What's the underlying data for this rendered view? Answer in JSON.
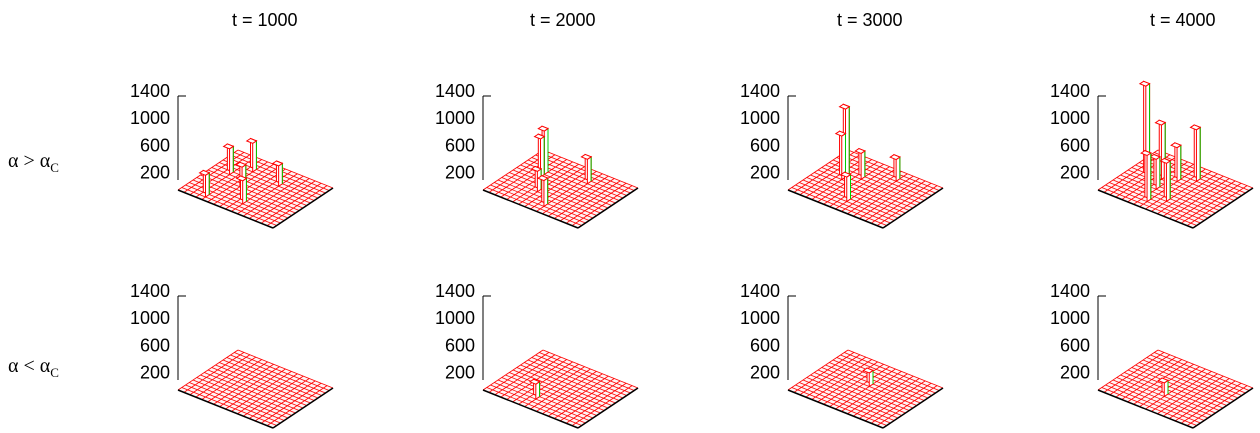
{
  "column_titles": [
    "t = 1000",
    "t = 2000",
    "t = 3000",
    "t = 4000"
  ],
  "row_labels": [
    {
      "greek": "α",
      "op": ">",
      "sub": "C"
    },
    {
      "greek": "α",
      "op": "<",
      "sub": "C"
    }
  ],
  "colors": {
    "bar_edge": "#ff0000",
    "bar_side": "#00cc00",
    "axis": "#000000"
  },
  "chart_data": [
    {
      "type": "bar3d",
      "title": "t = 1000",
      "row": "α > αC",
      "zticks": [
        200,
        600,
        1000,
        1400
      ],
      "zlim": [
        0,
        1400
      ],
      "peaks": [
        {
          "gx": 3,
          "gy": 4,
          "h": 420
        },
        {
          "gx": 6,
          "gy": 2,
          "h": 380
        },
        {
          "gx": 9,
          "gy": 6,
          "h": 360
        },
        {
          "gx": 12,
          "gy": 8,
          "h": 340
        },
        {
          "gx": 4,
          "gy": 9,
          "h": 300
        },
        {
          "gx": 14,
          "gy": 3,
          "h": 320
        }
      ]
    },
    {
      "type": "bar3d",
      "title": "t = 2000",
      "row": "α > αC",
      "zticks": [
        200,
        600,
        1000,
        1400
      ],
      "zlim": [
        0,
        1400
      ],
      "peaks": [
        {
          "gx": 5,
          "gy": 3,
          "h": 640
        },
        {
          "gx": 6,
          "gy": 3,
          "h": 560
        },
        {
          "gx": 3,
          "gy": 9,
          "h": 360
        },
        {
          "gx": 13,
          "gy": 8,
          "h": 380
        },
        {
          "gx": 10,
          "gy": 5,
          "h": 300
        }
      ]
    },
    {
      "type": "bar3d",
      "title": "t = 3000",
      "row": "α > αC",
      "zticks": [
        200,
        600,
        1000,
        1400
      ],
      "zlim": [
        0,
        1400
      ],
      "peaks": [
        {
          "gx": 6,
          "gy": 3,
          "h": 1000
        },
        {
          "gx": 7,
          "gy": 3,
          "h": 640
        },
        {
          "gx": 5,
          "gy": 5,
          "h": 380
        },
        {
          "gx": 12,
          "gy": 7,
          "h": 360
        },
        {
          "gx": 2,
          "gy": 9,
          "h": 320
        }
      ]
    },
    {
      "type": "bar3d",
      "title": "t = 4000",
      "row": "α > αC",
      "zticks": [
        200,
        600,
        1000,
        1400
      ],
      "zlim": [
        0,
        1400
      ],
      "peaks": [
        {
          "gx": 7,
          "gy": 2,
          "h": 1340
        },
        {
          "gx": 6,
          "gy": 4,
          "h": 800
        },
        {
          "gx": 3,
          "gy": 8,
          "h": 760
        },
        {
          "gx": 13,
          "gy": 6,
          "h": 680
        },
        {
          "gx": 11,
          "gy": 8,
          "h": 560
        },
        {
          "gx": 5,
          "gy": 6,
          "h": 500
        },
        {
          "gx": 9,
          "gy": 5,
          "h": 440
        }
      ]
    },
    {
      "type": "bar3d",
      "title": "t = 1000",
      "row": "α < αC",
      "zticks": [
        200,
        600,
        1000,
        1400
      ],
      "zlim": [
        0,
        1400
      ],
      "peaks": []
    },
    {
      "type": "bar3d",
      "title": "t = 2000",
      "row": "α < αC",
      "zticks": [
        200,
        600,
        1000,
        1400
      ],
      "zlim": [
        0,
        1400
      ],
      "peaks": [
        {
          "gx": 12,
          "gy": 6,
          "h": 220
        }
      ]
    },
    {
      "type": "bar3d",
      "title": "t = 3000",
      "row": "α < αC",
      "zticks": [
        200,
        600,
        1000,
        1400
      ],
      "zlim": [
        0,
        1400
      ],
      "peaks": [
        {
          "gx": 6,
          "gy": 7,
          "h": 200
        }
      ]
    },
    {
      "type": "bar3d",
      "title": "t = 4000",
      "row": "α < αC",
      "zticks": [
        200,
        600,
        1000,
        1400
      ],
      "zlim": [
        0,
        1400
      ],
      "peaks": [
        {
          "gx": 10,
          "gy": 7,
          "h": 200
        }
      ]
    }
  ]
}
